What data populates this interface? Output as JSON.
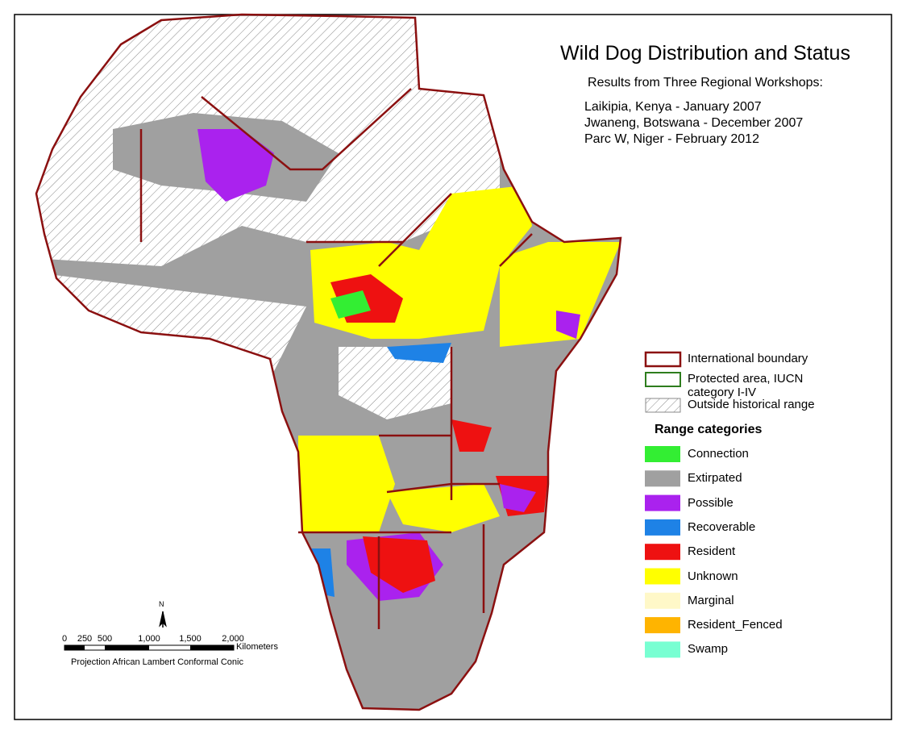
{
  "title": "Wild Dog Distribution and Status",
  "subtitle": "Results from Three Regional Workshops:",
  "workshops": [
    "Laikipia, Kenya - January 2007",
    "Jwaneng, Botswana - December 2007",
    "Parc W, Niger - February 2012"
  ],
  "legend": {
    "boundaries": [
      {
        "label": "International boundary",
        "style": "boundary"
      },
      {
        "label": "Protected area, IUCN category I-IV",
        "style": "protected"
      },
      {
        "label": "Outside historical range",
        "style": "hatch"
      }
    ],
    "range_title": "Range categories",
    "categories": [
      {
        "label": "Connection",
        "color": "#33ee33"
      },
      {
        "label": "Extirpated",
        "color": "#a0a0a0"
      },
      {
        "label": "Possible",
        "color": "#aa22ee"
      },
      {
        "label": "Recoverable",
        "color": "#1e82e6"
      },
      {
        "label": "Resident",
        "color": "#ee1111"
      },
      {
        "label": "Unknown",
        "color": "#ffff00"
      },
      {
        "label": "Marginal",
        "color": "#fff8c8"
      },
      {
        "label": "Resident_Fenced",
        "color": "#ffb400"
      },
      {
        "label": "Swamp",
        "color": "#78ffd2"
      }
    ]
  },
  "north": "N",
  "scale": {
    "labels": [
      "0",
      "250",
      "500",
      "1,000",
      "1,500",
      "2,000"
    ],
    "unit": "Kilometers",
    "projection": "Projection African Lambert Conformal Conic"
  }
}
